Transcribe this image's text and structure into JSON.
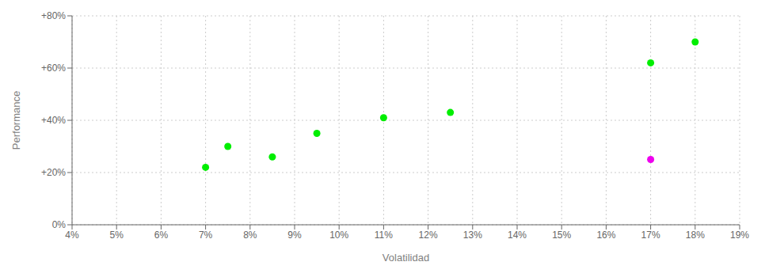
{
  "chart_data": {
    "type": "scatter",
    "xlabel": "Volatilidad",
    "ylabel": "Performance",
    "series": [
      {
        "color": "#00ee00",
        "x": [
          7.0,
          7.5,
          8.5,
          9.5,
          11.0,
          12.5,
          17.0,
          18.0
        ],
        "values": [
          22,
          30,
          26,
          35,
          41,
          43,
          62,
          70
        ]
      },
      {
        "color": "#ee00ee",
        "x": [
          17.0
        ],
        "values": [
          25
        ]
      }
    ],
    "xlim": [
      4,
      19
    ],
    "ylim": [
      0,
      80
    ],
    "xticks": [
      {
        "value": 4,
        "label": "4%"
      },
      {
        "value": 5,
        "label": "5%"
      },
      {
        "value": 6,
        "label": "6%"
      },
      {
        "value": 7,
        "label": "7%"
      },
      {
        "value": 8,
        "label": "8%"
      },
      {
        "value": 9,
        "label": "9%"
      },
      {
        "value": 10,
        "label": "10%"
      },
      {
        "value": 11,
        "label": "11%"
      },
      {
        "value": 12,
        "label": "12%"
      },
      {
        "value": 13,
        "label": "13%"
      },
      {
        "value": 14,
        "label": "14%"
      },
      {
        "value": 15,
        "label": "15%"
      },
      {
        "value": 16,
        "label": "16%"
      },
      {
        "value": 17,
        "label": "17%"
      },
      {
        "value": 18,
        "label": "18%"
      },
      {
        "value": 19,
        "label": "19%"
      }
    ],
    "yticks": [
      {
        "value": 0,
        "label": "0%"
      },
      {
        "value": 20,
        "label": "+20%"
      },
      {
        "value": 40,
        "label": "+40%"
      },
      {
        "value": 60,
        "label": "+60%"
      },
      {
        "value": 80,
        "label": "+80%"
      }
    ],
    "grid": true
  }
}
